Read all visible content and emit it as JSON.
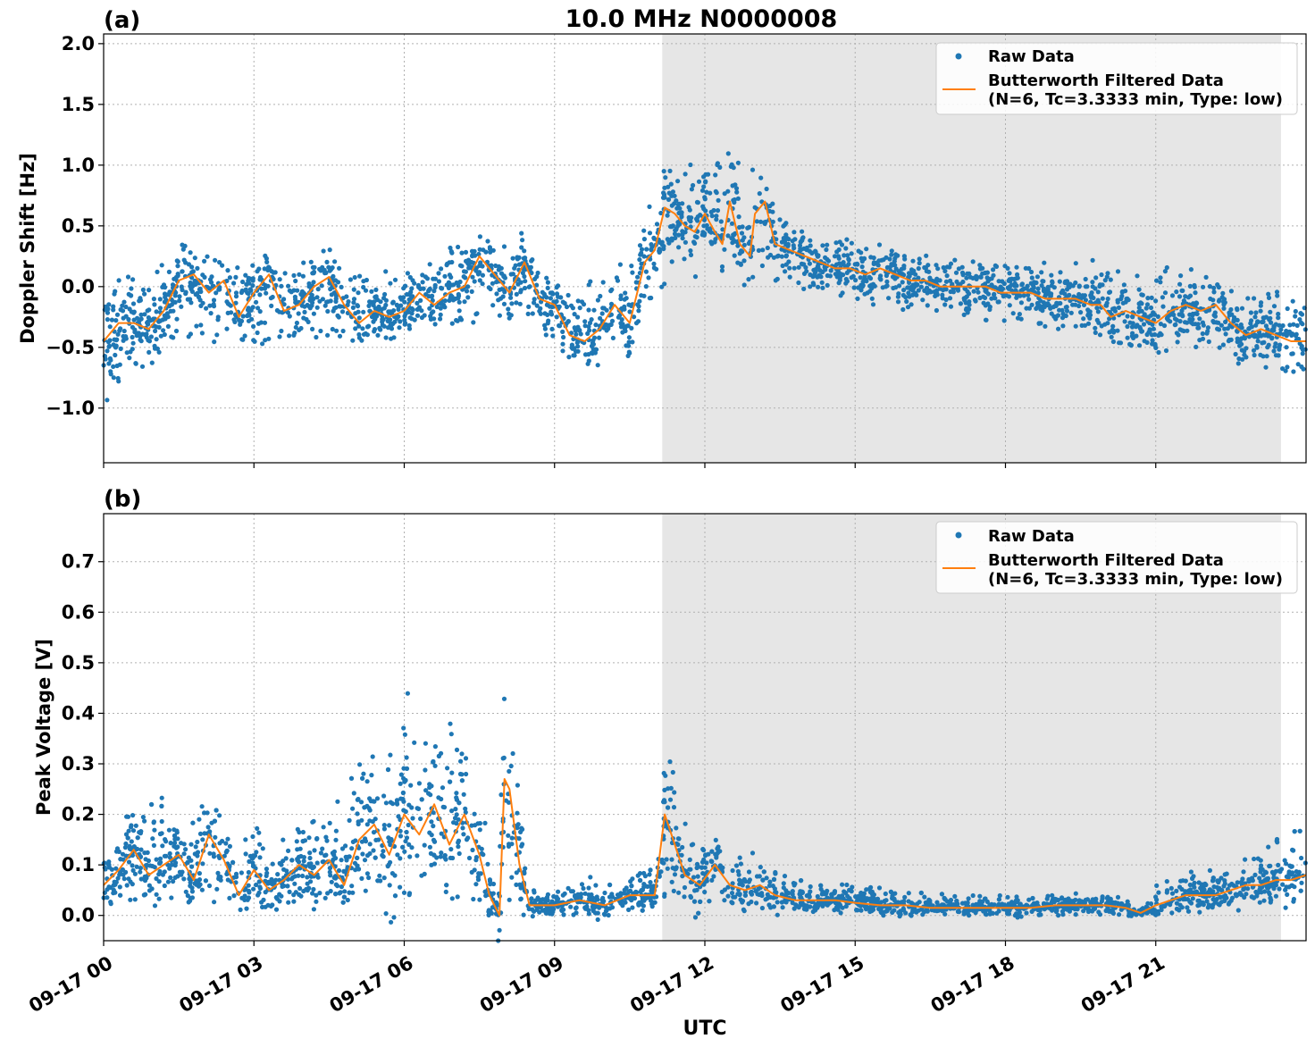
{
  "chart_data": {
    "title": "10.0 MHz N0000008",
    "xlabel": "UTC",
    "x_range_hours": [
      0,
      24
    ],
    "x_ticks": [
      {
        "hour": 0,
        "label": "09-17 00"
      },
      {
        "hour": 3,
        "label": "09-17 03"
      },
      {
        "hour": 6,
        "label": "09-17 06"
      },
      {
        "hour": 9,
        "label": "09-17 09"
      },
      {
        "hour": 12,
        "label": "09-17 12"
      },
      {
        "hour": 15,
        "label": "09-17 15"
      },
      {
        "hour": 18,
        "label": "09-17 18"
      },
      {
        "hour": 21,
        "label": "09-17 21"
      }
    ],
    "shaded_region_hours": [
      11.15,
      23.5
    ],
    "grid": true,
    "colors": {
      "raw": "#1f77b4",
      "filtered": "#ff7f0e",
      "shade": "#e6e6e6",
      "grid": "#b0b0b0"
    },
    "legend": {
      "placement": "top-right",
      "raw_label": "Raw Data",
      "filtered_label_line1": "Butterworth Filtered Data",
      "filtered_label_line2": "(N=6, Tc=3.3333 min, Type: low)"
    },
    "panels": [
      {
        "label": "(a)",
        "type": "line+scatter",
        "ylabel": "Doppler Shift [Hz]",
        "ylim": [
          -1.45,
          2.08
        ],
        "y_ticks": [
          {
            "value": -1.0,
            "label": "−1.0"
          },
          {
            "value": -0.5,
            "label": "−0.5"
          },
          {
            "value": 0.0,
            "label": "0.0"
          },
          {
            "value": 0.5,
            "label": "0.5"
          },
          {
            "value": 1.0,
            "label": "1.0"
          },
          {
            "value": 1.5,
            "label": "1.5"
          },
          {
            "value": 2.0,
            "label": "2.0"
          }
        ],
        "filtered": {
          "x": [
            0,
            0.3,
            0.6,
            0.9,
            1.2,
            1.5,
            1.8,
            2.1,
            2.4,
            2.7,
            3.0,
            3.3,
            3.6,
            3.9,
            4.2,
            4.5,
            4.8,
            5.1,
            5.4,
            5.7,
            6.0,
            6.3,
            6.6,
            6.9,
            7.2,
            7.5,
            7.8,
            8.1,
            8.4,
            8.7,
            9.0,
            9.3,
            9.6,
            9.9,
            10.2,
            10.5,
            10.8,
            11.0,
            11.2,
            11.4,
            11.6,
            11.8,
            12.0,
            12.2,
            12.35,
            12.5,
            12.7,
            12.9,
            13.0,
            13.2,
            13.4,
            13.7,
            14.0,
            14.3,
            14.6,
            14.9,
            15.2,
            15.5,
            15.8,
            16.1,
            16.4,
            16.7,
            17.0,
            17.3,
            17.6,
            17.9,
            18.2,
            18.5,
            18.8,
            19.1,
            19.4,
            19.7,
            19.9,
            20.1,
            20.4,
            20.7,
            21.0,
            21.3,
            21.6,
            21.9,
            22.2,
            22.5,
            22.8,
            23.1,
            23.4,
            23.7,
            24.0
          ],
          "y": [
            -0.45,
            -0.3,
            -0.3,
            -0.35,
            -0.2,
            0.05,
            0.1,
            -0.05,
            0.05,
            -0.25,
            -0.05,
            0.1,
            -0.2,
            -0.15,
            0.0,
            0.08,
            -0.15,
            -0.3,
            -0.2,
            -0.25,
            -0.2,
            -0.05,
            -0.15,
            -0.05,
            0.0,
            0.25,
            0.1,
            -0.05,
            0.2,
            -0.1,
            -0.15,
            -0.4,
            -0.45,
            -0.35,
            -0.15,
            -0.3,
            0.2,
            0.3,
            0.65,
            0.6,
            0.5,
            0.45,
            0.6,
            0.45,
            0.35,
            0.7,
            0.35,
            0.25,
            0.6,
            0.7,
            0.35,
            0.3,
            0.25,
            0.2,
            0.15,
            0.15,
            0.1,
            0.15,
            0.1,
            0.05,
            0.05,
            0.0,
            0.0,
            0.0,
            0.0,
            -0.05,
            -0.05,
            -0.05,
            -0.1,
            -0.1,
            -0.1,
            -0.15,
            -0.15,
            -0.25,
            -0.2,
            -0.25,
            -0.3,
            -0.2,
            -0.15,
            -0.2,
            -0.15,
            -0.3,
            -0.4,
            -0.35,
            -0.4,
            -0.45,
            -0.45
          ]
        },
        "raw_envelope": {
          "x": [
            0,
            0.5,
            1.0,
            1.5,
            2.0,
            2.5,
            3.0,
            3.5,
            4.0,
            4.5,
            5.0,
            5.5,
            6.0,
            6.5,
            7.0,
            7.5,
            8.0,
            8.5,
            9.0,
            9.5,
            10.0,
            10.5,
            11.0,
            11.5,
            12.0,
            12.5,
            13.0,
            13.5,
            14.0,
            14.5,
            15.0,
            15.5,
            16.0,
            16.5,
            17.0,
            17.5,
            18.0,
            18.5,
            19.0,
            19.5,
            20.0,
            20.5,
            21.0,
            21.5,
            22.0,
            22.5,
            23.0,
            23.5,
            24.0
          ],
          "lower": [
            -1.1,
            -0.7,
            -0.6,
            -0.4,
            -0.45,
            -0.55,
            -0.5,
            -0.45,
            -0.4,
            -0.45,
            -0.5,
            -0.35,
            -0.35,
            -0.4,
            -0.3,
            -0.3,
            -0.25,
            -0.35,
            -0.5,
            -0.6,
            -0.5,
            -0.5,
            -0.1,
            0.2,
            0.2,
            0.15,
            0.2,
            0.0,
            -0.05,
            -0.1,
            -0.1,
            -0.2,
            -0.2,
            -0.25,
            -0.25,
            -0.3,
            -0.3,
            -0.3,
            -0.35,
            -0.35,
            -0.4,
            -0.5,
            -0.5,
            -0.5,
            -0.5,
            -0.6,
            -0.65,
            -0.7,
            -0.7
          ],
          "upper": [
            0.0,
            0.1,
            0.1,
            0.35,
            0.3,
            0.15,
            0.2,
            0.15,
            0.2,
            0.15,
            0.1,
            0.15,
            0.1,
            0.2,
            0.35,
            0.35,
            0.35,
            0.25,
            0.1,
            0.0,
            0.1,
            0.3,
            0.8,
            1.0,
            1.05,
            1.2,
            1.0,
            0.6,
            0.45,
            0.4,
            0.4,
            0.35,
            0.3,
            0.25,
            0.25,
            0.2,
            0.2,
            0.2,
            0.2,
            0.2,
            0.3,
            0.2,
            0.15,
            0.2,
            0.1,
            0.05,
            0.0,
            -0.05,
            -0.1
          ]
        }
      },
      {
        "label": "(b)",
        "type": "line+scatter",
        "ylabel": "Peak Voltage [V]",
        "ylim": [
          -0.05,
          0.795
        ],
        "y_ticks": [
          {
            "value": 0.0,
            "label": "0.0"
          },
          {
            "value": 0.1,
            "label": "0.1"
          },
          {
            "value": 0.2,
            "label": "0.2"
          },
          {
            "value": 0.3,
            "label": "0.3"
          },
          {
            "value": 0.4,
            "label": "0.4"
          },
          {
            "value": 0.5,
            "label": "0.5"
          },
          {
            "value": 0.6,
            "label": "0.6"
          },
          {
            "value": 0.7,
            "label": "0.7"
          }
        ],
        "filtered": {
          "x": [
            0,
            0.3,
            0.6,
            0.9,
            1.2,
            1.5,
            1.8,
            2.1,
            2.4,
            2.7,
            3.0,
            3.3,
            3.6,
            3.9,
            4.2,
            4.5,
            4.8,
            5.1,
            5.4,
            5.7,
            6.0,
            6.3,
            6.6,
            6.9,
            7.2,
            7.5,
            7.7,
            7.9,
            8.0,
            8.1,
            8.3,
            8.5,
            8.7,
            9.0,
            9.5,
            10.0,
            10.5,
            11.0,
            11.2,
            11.4,
            11.6,
            11.9,
            12.2,
            12.5,
            12.8,
            13.1,
            13.4,
            13.8,
            14.2,
            14.6,
            15.0,
            15.5,
            16.0,
            16.5,
            17.0,
            17.5,
            18.0,
            18.5,
            19.0,
            19.5,
            20.0,
            20.4,
            20.7,
            21.0,
            21.3,
            21.6,
            21.9,
            22.2,
            22.5,
            22.8,
            23.1,
            23.4,
            23.7,
            24.0
          ],
          "y": [
            0.06,
            0.09,
            0.13,
            0.08,
            0.1,
            0.12,
            0.07,
            0.16,
            0.11,
            0.04,
            0.09,
            0.05,
            0.07,
            0.1,
            0.08,
            0.11,
            0.06,
            0.15,
            0.18,
            0.12,
            0.2,
            0.16,
            0.22,
            0.14,
            0.2,
            0.12,
            0.04,
            0.0,
            0.27,
            0.25,
            0.1,
            0.02,
            0.02,
            0.02,
            0.03,
            0.02,
            0.04,
            0.04,
            0.2,
            0.14,
            0.08,
            0.06,
            0.1,
            0.06,
            0.05,
            0.06,
            0.04,
            0.03,
            0.03,
            0.03,
            0.025,
            0.02,
            0.02,
            0.015,
            0.015,
            0.015,
            0.015,
            0.015,
            0.02,
            0.02,
            0.02,
            0.015,
            0.005,
            0.02,
            0.03,
            0.04,
            0.04,
            0.04,
            0.05,
            0.06,
            0.06,
            0.07,
            0.07,
            0.08
          ]
        },
        "raw_envelope": {
          "x": [
            0,
            0.5,
            1.0,
            1.5,
            2.0,
            2.5,
            3.0,
            3.5,
            4.0,
            4.5,
            5.0,
            5.5,
            6.0,
            6.5,
            7.0,
            7.5,
            7.8,
            8.0,
            8.2,
            8.5,
            9.0,
            9.5,
            10.0,
            10.5,
            11.0,
            11.3,
            11.6,
            12.0,
            12.5,
            13.0,
            13.5,
            14.0,
            15.0,
            16.0,
            17.0,
            18.0,
            19.0,
            20.0,
            20.4,
            20.7,
            21.0,
            22.0,
            23.0,
            24.0
          ],
          "lower": [
            0.02,
            0.02,
            0.03,
            0.02,
            0.03,
            0.02,
            0.01,
            0.02,
            0.02,
            0.03,
            0.02,
            0.03,
            0.03,
            0.04,
            0.03,
            0.03,
            0.0,
            0.0,
            0.05,
            0.0,
            0.0,
            0.0,
            0.01,
            0.01,
            0.01,
            0.05,
            0.03,
            0.01,
            0.01,
            0.01,
            0.01,
            0.01,
            0.01,
            0.0,
            0.0,
            0.0,
            0.0,
            0.0,
            0.0,
            0.0,
            0.0,
            0.01,
            0.02,
            0.03
          ],
          "upper": [
            0.16,
            0.2,
            0.25,
            0.2,
            0.28,
            0.15,
            0.18,
            0.15,
            0.2,
            0.22,
            0.3,
            0.35,
            0.45,
            0.4,
            0.38,
            0.3,
            0.05,
            0.45,
            0.35,
            0.05,
            0.05,
            0.08,
            0.07,
            0.09,
            0.1,
            0.4,
            0.2,
            0.15,
            0.15,
            0.13,
            0.09,
            0.07,
            0.06,
            0.05,
            0.04,
            0.04,
            0.04,
            0.05,
            0.04,
            0.02,
            0.06,
            0.1,
            0.13,
            0.18
          ]
        }
      }
    ]
  }
}
